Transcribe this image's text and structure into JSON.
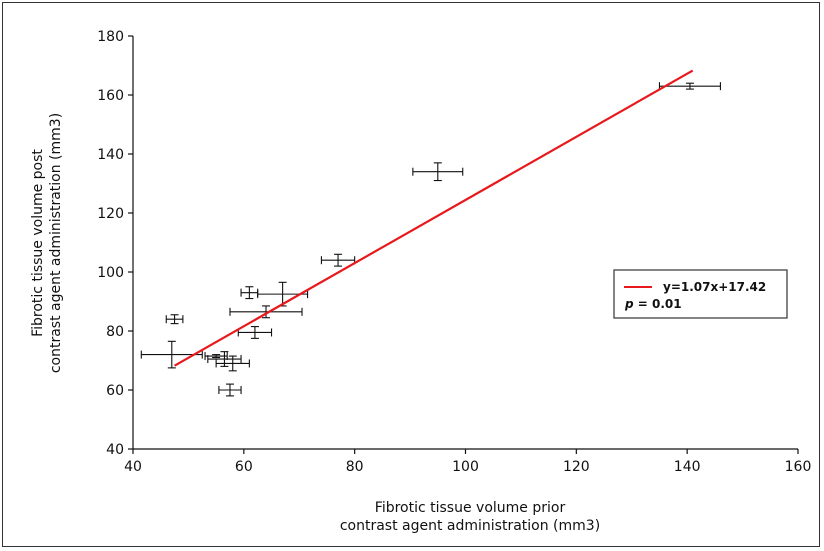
{
  "chart_data": {
    "type": "scatter",
    "x_title_lines": [
      "Fibrotic tissue volume prior",
      "contrast agent administration (mm3)"
    ],
    "y_title_lines": [
      "Fibrotic tissue volume post",
      "contrast agent administration (mm3)"
    ],
    "xlim": [
      40,
      160
    ],
    "ylim": [
      40,
      180
    ],
    "x_ticks": [
      40,
      60,
      80,
      100,
      120,
      140,
      160
    ],
    "y_ticks": [
      40,
      60,
      80,
      100,
      120,
      140,
      160,
      180
    ],
    "grid": false,
    "points": [
      {
        "x": 47,
        "y": 72,
        "xerr": 5.5,
        "yerr": 4.5
      },
      {
        "x": 47.5,
        "y": 84,
        "xerr": 1.5,
        "yerr": 1.5
      },
      {
        "x": 55,
        "y": 71.5,
        "xerr": 2,
        "yerr": 0.5
      },
      {
        "x": 56.5,
        "y": 70.5,
        "xerr": 3,
        "yerr": 2.5
      },
      {
        "x": 58,
        "y": 69,
        "xerr": 3,
        "yerr": 2.5
      },
      {
        "x": 57.5,
        "y": 60,
        "xerr": 2,
        "yerr": 2
      },
      {
        "x": 61,
        "y": 93,
        "xerr": 1.5,
        "yerr": 2
      },
      {
        "x": 62,
        "y": 79.5,
        "xerr": 3,
        "yerr": 2
      },
      {
        "x": 64,
        "y": 86.5,
        "xerr": 6.5,
        "yerr": 2
      },
      {
        "x": 67,
        "y": 92.5,
        "xerr": 4.5,
        "yerr": 4
      },
      {
        "x": 77,
        "y": 104,
        "xerr": 3,
        "yerr": 2
      },
      {
        "x": 95,
        "y": 134,
        "xerr": 4.5,
        "yerr": 3
      },
      {
        "x": 140.5,
        "y": 163,
        "xerr": 5.5,
        "yerr": 1
      }
    ],
    "fit": {
      "slope": 1.07,
      "intercept": 17.42,
      "x_range": [
        47.5,
        141
      ],
      "color": "#e8191c"
    },
    "legend": {
      "line1": "y=1.07x+17.42",
      "line2_p": "p",
      "line2_value": "= 0.01"
    }
  }
}
